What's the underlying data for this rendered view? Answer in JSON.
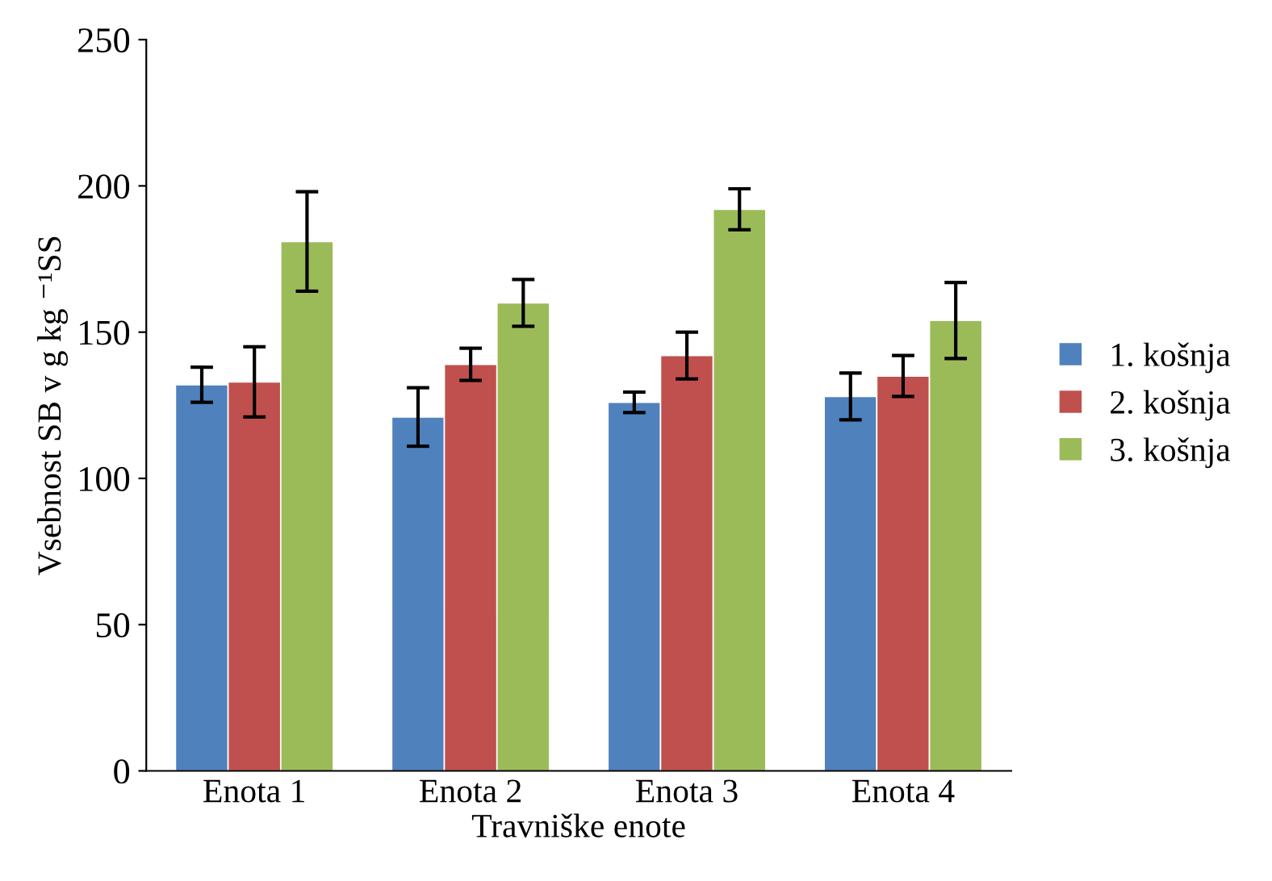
{
  "chart_data": {
    "type": "bar",
    "xlabel": "Travniške enote",
    "ylabel": "Vsebnost SB v g kg ⁻¹SS",
    "categories": [
      "Enota 1",
      "Enota 2",
      "Enota 3",
      "Enota 4"
    ],
    "series": [
      {
        "name": "1. košnja",
        "color": "#4f81bd",
        "values": [
          132,
          121,
          126,
          128
        ],
        "errors": [
          6,
          10,
          3.5,
          8
        ]
      },
      {
        "name": "2. košnja",
        "color": "#c0504d",
        "values": [
          133,
          139,
          142,
          135
        ],
        "errors": [
          12,
          5.5,
          8,
          7
        ]
      },
      {
        "name": "3. košnja",
        "color": "#9bbb59",
        "values": [
          181,
          160,
          192,
          154
        ],
        "errors": [
          17,
          8,
          7,
          13
        ]
      }
    ],
    "ylim": [
      0,
      250
    ],
    "yticks": [
      0,
      50,
      100,
      150,
      200,
      250
    ],
    "grid": false,
    "legend": "right"
  }
}
